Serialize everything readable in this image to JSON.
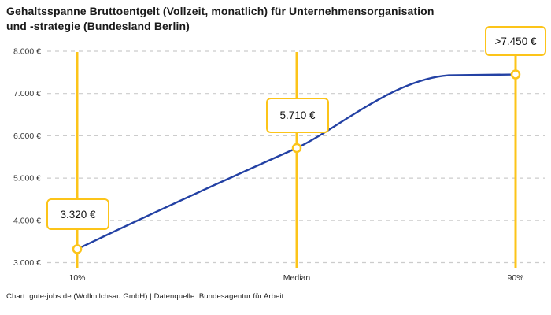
{
  "header": {
    "title_line1": "Gehaltsspanne Bruttoentgelt (Vollzeit, monatlich) für Unternehmensorganisation",
    "title_line2": "und -strategie (Bundesland Berlin)"
  },
  "footer": {
    "text": "Chart: gute-jobs.de (Wollmilchsau GmbH) | Datenquelle: Bundesagentur für Arbeit"
  },
  "colors": {
    "accent_gold": "#FCC419",
    "line_blue": "#2341A4",
    "grid_gray": "#CCCCCC",
    "axis_text": "#3b3b3b",
    "title_text": "#1a1a1a"
  },
  "chart_data": {
    "type": "line",
    "title": "Gehaltsspanne Bruttoentgelt (Vollzeit, monatlich) für Unternehmensorganisation und -strategie (Bundesland Berlin)",
    "categories": [
      "10%",
      "Median",
      "90%"
    ],
    "values": [
      3320,
      5710,
      7450
    ],
    "points": [
      {
        "label": "10%",
        "value": 3320,
        "display": "3.320 €"
      },
      {
        "label": "Median",
        "value": 5710,
        "display": "5.710 €"
      },
      {
        "label": "90%",
        "value": 7450,
        "display": ">7.450 €",
        "open_ended": true
      }
    ],
    "ylim": [
      3000,
      8000
    ],
    "yticks": [
      {
        "value": 3000,
        "label": "3.000 €"
      },
      {
        "value": 4000,
        "label": "4.000 €"
      },
      {
        "value": 5000,
        "label": "5.000 €"
      },
      {
        "value": 6000,
        "label": "6.000 €"
      },
      {
        "value": 7000,
        "label": "7.000 €"
      },
      {
        "value": 8000,
        "label": "8.000 €"
      }
    ],
    "xlabel": "",
    "ylabel": "",
    "currency": "EUR",
    "grid": "dashed-horizontal",
    "legend": "none",
    "curve_shape": "rises from 10% through median, plateaus at 90% value"
  }
}
